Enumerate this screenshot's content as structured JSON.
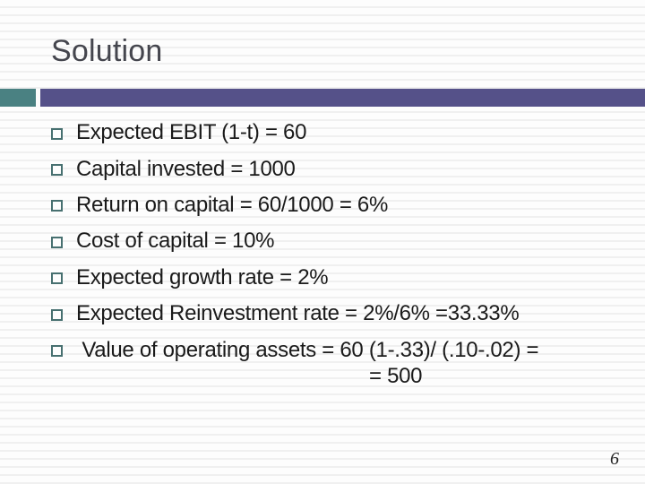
{
  "slide": {
    "title": "Solution",
    "bullets": [
      "Expected EBIT (1-t) = 60",
      "Capital invested = 1000",
      "Return on capital = 60/1000 = 6%",
      "Cost of capital = 10%",
      "Expected growth rate = 2%",
      "Expected Reinvestment rate = 2%/6% =33.33%",
      " Value of operating assets = 60 (1-.33)/ (.10-.02) ="
    ],
    "continuation": "= 500",
    "page_number": "6",
    "colors": {
      "teal_accent": "#4a8182",
      "purple_accent": "#555189",
      "bullet_outline": "#477070",
      "title_text": "#45464e",
      "body_text": "#1a1a1a",
      "stripe": "#f0f0f0"
    }
  }
}
